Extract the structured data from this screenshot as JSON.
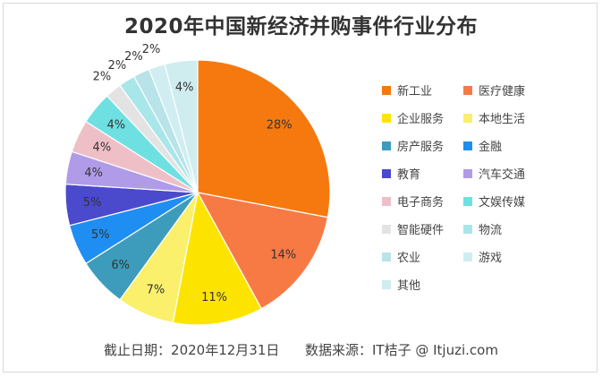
{
  "chart_data": {
    "type": "pie",
    "title": "2020年中国新经济并购事件行业分布",
    "slices": [
      {
        "label": "新工业",
        "value": 28,
        "text": "28%",
        "color": "#f5790f"
      },
      {
        "label": "医疗健康",
        "value": 14,
        "text": "14%",
        "color": "#f77a45"
      },
      {
        "label": "企业服务",
        "value": 11,
        "text": "11%",
        "color": "#fde400"
      },
      {
        "label": "本地生活",
        "value": 7,
        "text": "7%",
        "color": "#faf06c"
      },
      {
        "label": "房产服务",
        "value": 6,
        "text": "6%",
        "color": "#3d9cbb"
      },
      {
        "label": "金融",
        "value": 5,
        "text": "5%",
        "color": "#1f8ef2"
      },
      {
        "label": "教育",
        "value": 5,
        "text": "5%",
        "color": "#4b49cc"
      },
      {
        "label": "汽车交通",
        "value": 4,
        "text": "4%",
        "color": "#b09be8"
      },
      {
        "label": "电子商务",
        "value": 4,
        "text": "4%",
        "color": "#efbfc8"
      },
      {
        "label": "文娱传媒",
        "value": 4,
        "text": "4%",
        "color": "#6fe0e2"
      },
      {
        "label": "智能硬件",
        "value": 2,
        "text": "2%",
        "color": "#e3e3e3"
      },
      {
        "label": "物流",
        "value": 2,
        "text": "2%",
        "color": "#a9e6ea"
      },
      {
        "label": "农业",
        "value": 2,
        "text": "2%",
        "color": "#b8e3e8"
      },
      {
        "label": "游戏",
        "value": 2,
        "text": "2%",
        "color": "#d0eef2"
      },
      {
        "label": "其他",
        "value": 4,
        "text": "4%",
        "color": "#cfecef"
      }
    ],
    "legend_position": "right"
  },
  "footer": {
    "date_text": "截止日期：2020年12月31日",
    "source_text": "数据来源：IT桔子 @ Itjuzi.com"
  }
}
